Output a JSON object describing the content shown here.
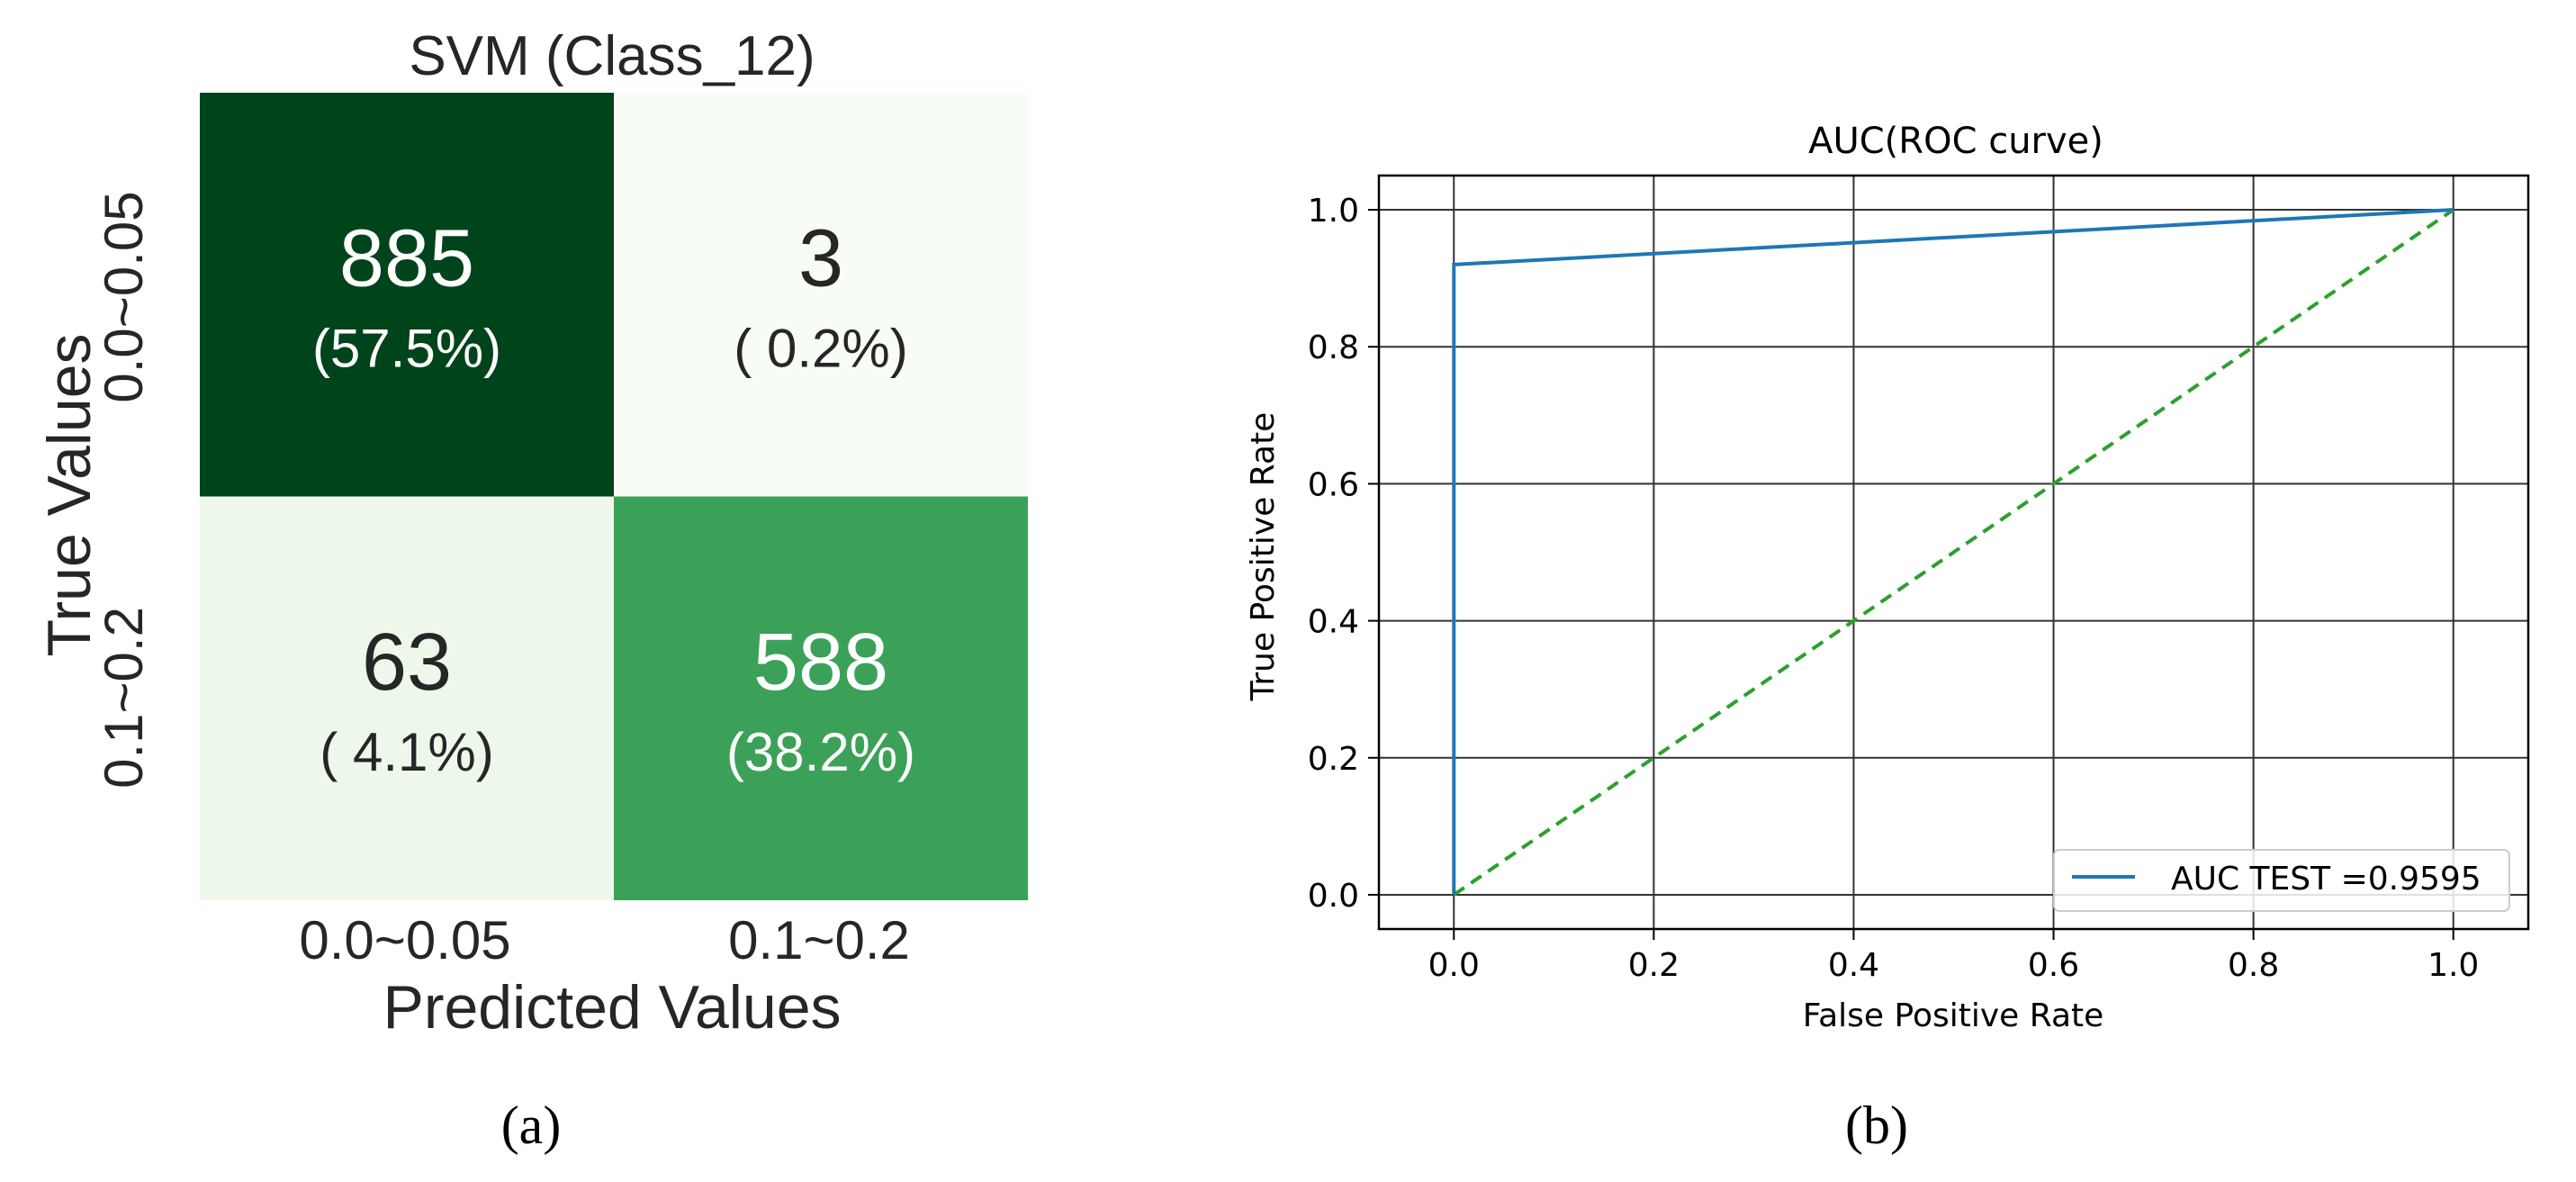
{
  "panels": [
    {
      "label": "(a)"
    },
    {
      "label": "(b)"
    }
  ],
  "chart_data": [
    {
      "type": "heatmap",
      "title": "SVM (Class_12)",
      "xlabel": "Predicted Values",
      "ylabel": "True Values",
      "x_categories": [
        "0.0~0.05",
        "0.1~0.2"
      ],
      "y_categories": [
        "0.0~0.05",
        "0.1~0.2"
      ],
      "values": [
        [
          885,
          3
        ],
        [
          63,
          588
        ]
      ],
      "percent_labels": [
        [
          "(57.5%)",
          "( 0.2%)"
        ],
        [
          "( 4.1%)",
          "(38.2%)"
        ]
      ],
      "colormap": "Greens",
      "colors": [
        [
          "#00441b",
          "#f7fcf5"
        ],
        [
          "#edf8ea",
          "#3ba158"
        ]
      ],
      "text_colors": [
        [
          "#ffffff",
          "#262626"
        ],
        [
          "#262626",
          "#ffffff"
        ]
      ],
      "colorbar": false
    },
    {
      "type": "line",
      "title": "AUC(ROC curve)",
      "xlabel": "False Positive Rate",
      "ylabel": "True Positive Rate",
      "xlim": [
        -0.075,
        1.075
      ],
      "ylim": [
        -0.05,
        1.05
      ],
      "xticks": [
        0.0,
        0.2,
        0.4,
        0.6,
        0.8,
        1.0
      ],
      "yticks": [
        0.0,
        0.2,
        0.4,
        0.6,
        0.8,
        1.0
      ],
      "xtick_labels": [
        "0.0",
        "0.2",
        "0.4",
        "0.6",
        "0.8",
        "1.0"
      ],
      "ytick_labels": [
        "0.0",
        "0.2",
        "0.4",
        "0.6",
        "0.8",
        "1.0"
      ],
      "grid": true,
      "legend": "lower-right",
      "series": [
        {
          "name": "AUC TEST =0.9595",
          "x": [
            0.0,
            0.0,
            1.0
          ],
          "y": [
            0.0,
            0.92,
            1.0
          ],
          "color": "#1f77b4",
          "style": "solid"
        },
        {
          "x": [
            0.0,
            1.0
          ],
          "y": [
            0.0,
            1.0
          ],
          "color": "#2ca02c",
          "style": "dashed"
        }
      ]
    }
  ]
}
